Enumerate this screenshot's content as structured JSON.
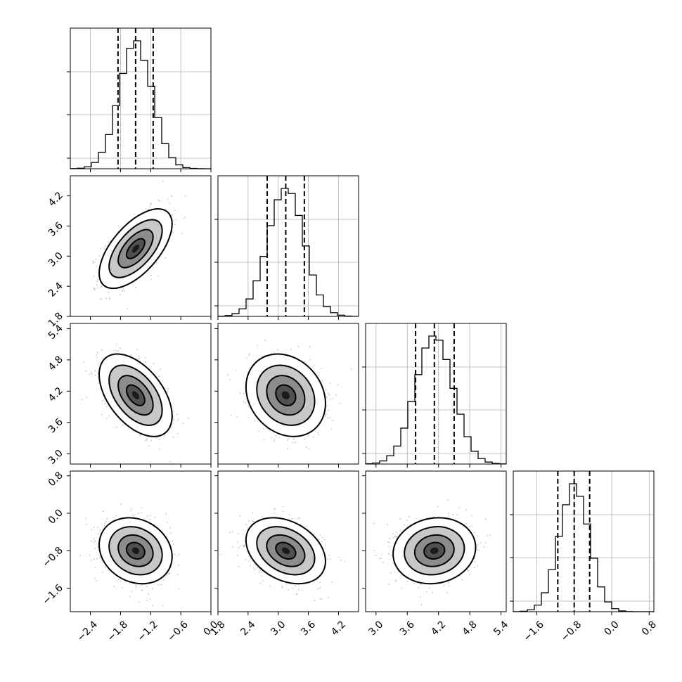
{
  "chart_data": {
    "type": "corner",
    "parameters": [
      {
        "range": [
          -2.8,
          0.0
        ],
        "ticks": [
          -2.4,
          -1.8,
          -1.2,
          -0.6,
          0.0
        ],
        "tick_labels": [
          "−2.4",
          "−1.8",
          "−1.2",
          "−0.6",
          "0.0"
        ],
        "mean": -1.5,
        "sd": 0.33,
        "quantiles": [
          -1.85,
          -1.5,
          -1.15
        ]
      },
      {
        "range": [
          1.8,
          4.6
        ],
        "ticks": [
          1.8,
          2.4,
          3.0,
          3.6,
          4.2
        ],
        "tick_labels": [
          "1.8",
          "2.4",
          "3.0",
          "3.6",
          "4.2"
        ],
        "mean": 3.15,
        "sd": 0.36,
        "quantiles": [
          2.78,
          3.15,
          3.52
        ]
      },
      {
        "range": [
          2.8,
          5.5
        ],
        "ticks": [
          3.0,
          3.6,
          4.2,
          4.8,
          5.4
        ],
        "tick_labels": [
          "3.0",
          "3.6",
          "4.2",
          "4.8",
          "5.4"
        ],
        "mean": 4.12,
        "sd": 0.36,
        "quantiles": [
          3.76,
          4.12,
          4.5
        ]
      },
      {
        "range": [
          -2.1,
          0.9
        ],
        "ticks": [
          -1.6,
          -0.8,
          0.0,
          0.8
        ],
        "tick_labels": [
          "−1.6",
          "−0.8",
          "0.0",
          "0.8"
        ],
        "mean": -0.8,
        "sd": 0.32,
        "quantiles": [
          -1.15,
          -0.8,
          -0.47
        ]
      }
    ],
    "correlations": {
      "1-0": 0.62,
      "2-0": -0.5,
      "2-1": -0.2,
      "3-0": -0.18,
      "3-1": -0.32,
      "3-2": 0.1
    },
    "grid": true
  }
}
